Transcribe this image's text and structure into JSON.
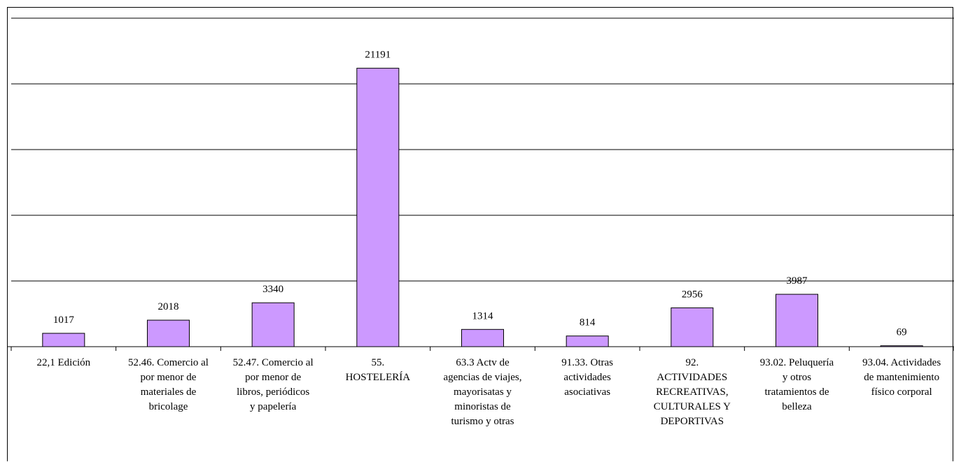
{
  "chart_data": {
    "type": "bar",
    "categories": [
      "22,1 Edición",
      "52.46. Comercio al por menor de materiales de bricolage",
      "52.47. Comercio al por menor de libros, periódicos y papelería",
      "55. HOSTELERÍA",
      "63.3 Actv de agencias de viajes, mayorisatas y minoristas de turismo y otras",
      "91.33. Otras actividades asociativas",
      "92. ACTIVIDADES RECREATIVAS, CULTURALES Y DEPORTIVAS",
      "93.02. Peluquería y otros tratamientos de belleza",
      "93.04. Actividades de mantenimiento físico corporal"
    ],
    "category_lines": [
      [
        "22,1 Edición"
      ],
      [
        "52.46. Comercio al",
        "por menor de",
        "materiales de",
        "bricolage"
      ],
      [
        "52.47. Comercio al",
        "por menor de",
        "libros, periódicos",
        "y papelería"
      ],
      [
        "55.",
        "HOSTELERÍA"
      ],
      [
        "63.3 Actv de",
        "agencias de viajes,",
        "mayorisatas y",
        "minoristas de",
        "turismo y otras"
      ],
      [
        "91.33. Otras",
        "actividades",
        "asociativas"
      ],
      [
        "92.",
        "ACTIVIDADES",
        "RECREATIVAS,",
        "CULTURALES Y",
        "DEPORTIVAS"
      ],
      [
        "93.02. Peluquería",
        "y otros",
        "tratamientos de",
        "belleza"
      ],
      [
        "93.04. Actividades",
        "de mantenimiento",
        "físico corporal"
      ]
    ],
    "values": [
      1017,
      2018,
      3340,
      21191,
      1314,
      814,
      2956,
      3987,
      69
    ],
    "data_labels": [
      "1017",
      "2018",
      "3340",
      "21191",
      "1314",
      "814",
      "2956",
      "3987",
      "69"
    ],
    "ylim": [
      0,
      25000
    ],
    "ygrid_step": 5000,
    "grid": true,
    "bar_color": "#cc99ff",
    "bar_stroke": "#000000",
    "title": "",
    "xlabel": "",
    "ylabel": ""
  }
}
